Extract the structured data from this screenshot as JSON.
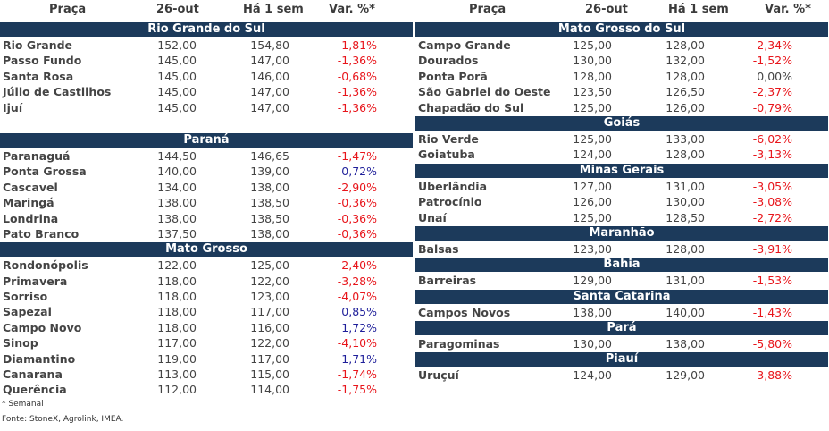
{
  "headers": {
    "praca": "Praça",
    "date": "26-out",
    "week": "Há 1 sem",
    "var": "Var. %*"
  },
  "left": [
    {
      "region": "Rio Grande do Sul",
      "rows": [
        [
          "Rio Grande",
          "152,00",
          "154,80",
          "-1,81%"
        ],
        [
          "Passo Fundo",
          "145,00",
          "147,00",
          "-1,36%"
        ],
        [
          "Santa Rosa",
          "145,00",
          "146,00",
          "-0,68%"
        ],
        [
          "Júlio de Castilhos",
          "145,00",
          "147,00",
          "-1,36%"
        ],
        [
          "Ijuí",
          "145,00",
          "147,00",
          "-1,36%"
        ]
      ]
    },
    {
      "region": "Paraná",
      "rows": [
        [
          "Paranaguá",
          "144,50",
          "146,65",
          "-1,47%"
        ],
        [
          "Ponta Grossa",
          "140,00",
          "139,00",
          "0,72%"
        ],
        [
          "Cascavel",
          "134,00",
          "138,00",
          "-2,90%"
        ],
        [
          "Maringá",
          "138,00",
          "138,50",
          "-0,36%"
        ],
        [
          "Londrina",
          "138,00",
          "138,50",
          "-0,36%"
        ],
        [
          "Pato Branco",
          "137,50",
          "138,00",
          "-0,36%"
        ]
      ]
    },
    {
      "region": "Mato Grosso",
      "rows": [
        [
          "Rondonópolis",
          "122,00",
          "125,00",
          "-2,40%"
        ],
        [
          "Primavera",
          "118,00",
          "122,00",
          "-3,28%"
        ],
        [
          "Sorriso",
          "118,00",
          "123,00",
          "-4,07%"
        ],
        [
          "Sapezal",
          "118,00",
          "117,00",
          "0,85%"
        ],
        [
          "Campo Novo",
          "118,00",
          "116,00",
          "1,72%"
        ],
        [
          "Sinop",
          "117,00",
          "122,00",
          "-4,10%"
        ],
        [
          "Diamantino",
          "119,00",
          "117,00",
          "1,71%"
        ],
        [
          "Canarana",
          "113,00",
          "115,00",
          "-1,74%"
        ],
        [
          "Querência",
          "112,00",
          "114,00",
          "-1,75%"
        ]
      ]
    }
  ],
  "right": [
    {
      "region": "Mato Grosso do Sul",
      "rows": [
        [
          "Campo Grande",
          "125,00",
          "128,00",
          "-2,34%"
        ],
        [
          "Dourados",
          "130,00",
          "132,00",
          "-1,52%"
        ],
        [
          "Ponta Porã",
          "128,00",
          "128,00",
          "0,00%"
        ],
        [
          "São Gabriel do Oeste",
          "123,50",
          "126,50",
          "-2,37%"
        ],
        [
          "Chapadão do Sul",
          "125,00",
          "126,00",
          "-0,79%"
        ]
      ]
    },
    {
      "region": "Goiás",
      "rows": [
        [
          "Rio Verde",
          "125,00",
          "133,00",
          "-6,02%"
        ],
        [
          "Goiatuba",
          "124,00",
          "128,00",
          "-3,13%"
        ]
      ]
    },
    {
      "region": "Minas Gerais",
      "rows": [
        [
          "Uberlândia",
          "127,00",
          "131,00",
          "-3,05%"
        ],
        [
          "Patrocínio",
          "126,00",
          "130,00",
          "-3,08%"
        ],
        [
          "Unaí",
          "125,00",
          "128,50",
          "-2,72%"
        ]
      ]
    },
    {
      "region": "Maranhão",
      "rows": [
        [
          "Balsas",
          "123,00",
          "128,00",
          "-3,91%"
        ]
      ]
    },
    {
      "region": "Bahia",
      "rows": [
        [
          "Barreiras",
          "129,00",
          "131,00",
          "-1,53%"
        ]
      ]
    },
    {
      "region": "Santa Catarina",
      "rows": [
        [
          "Campos Novos",
          "138,00",
          "140,00",
          "-1,43%"
        ]
      ]
    },
    {
      "region": "Pará",
      "rows": [
        [
          "Paragominas",
          "130,00",
          "138,00",
          "-5,80%"
        ]
      ]
    },
    {
      "region": "Piauí",
      "rows": [
        [
          "Uruçuí",
          "124,00",
          "129,00",
          "-3,88%"
        ]
      ]
    }
  ],
  "footnote": {
    "semanal": "* Semanal",
    "fonte": "Fonte: StoneX, Agrolink, IMEA."
  },
  "colors": {
    "header_bg": "#1c3a5b",
    "negative": "#e8151b",
    "positive": "#1f1f9a"
  }
}
